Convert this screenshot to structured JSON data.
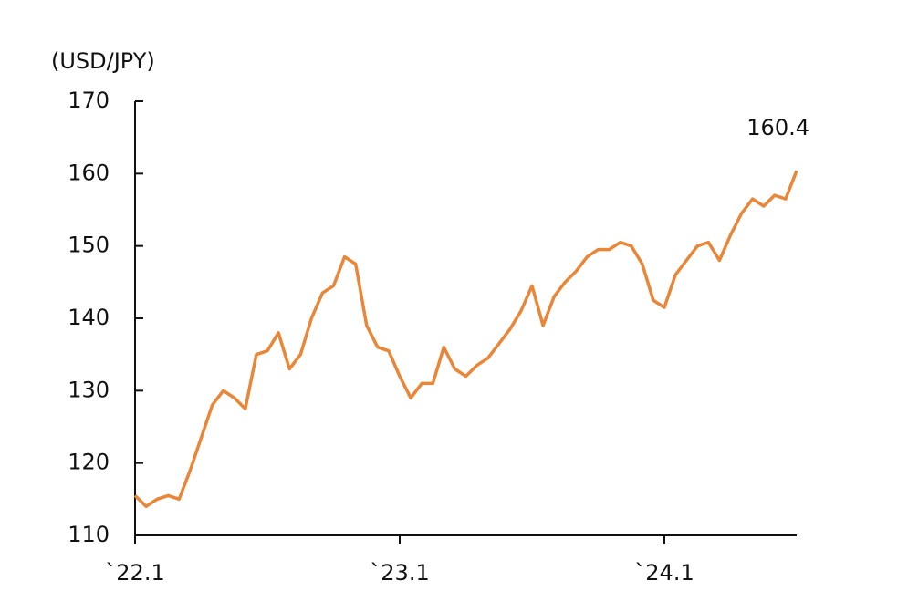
{
  "chart_data": {
    "type": "line",
    "y_label": "(USD/JPY)",
    "categories": [
      "`22.1",
      null,
      null,
      null,
      null,
      null,
      null,
      null,
      null,
      null,
      null,
      null,
      null,
      null,
      null,
      null,
      null,
      null,
      null,
      null,
      null,
      null,
      null,
      null,
      "`23.1",
      null,
      null,
      null,
      null,
      null,
      null,
      null,
      null,
      null,
      null,
      null,
      null,
      null,
      null,
      null,
      null,
      null,
      null,
      null,
      null,
      null,
      null,
      null,
      "`24.1",
      null,
      null,
      null,
      null,
      null,
      null,
      null,
      null,
      null,
      null,
      null,
      null
    ],
    "values": [
      115.5,
      114,
      115,
      115.5,
      115,
      119,
      123.5,
      128,
      130,
      129,
      127.5,
      135,
      135.5,
      138,
      133,
      135,
      140,
      143.5,
      144.5,
      148.5,
      147.5,
      139,
      136,
      135.5,
      132,
      129,
      131,
      131,
      136,
      133,
      132,
      133.5,
      134.5,
      136.5,
      138.5,
      141,
      144.5,
      139,
      143,
      145,
      146.5,
      148.5,
      149.5,
      149.5,
      150.5,
      150,
      147.5,
      142.5,
      141.5,
      146,
      148,
      150,
      150.5,
      148,
      151.5,
      154.5,
      156.5,
      155.5,
      157,
      156.5,
      160.4
    ],
    "color": "#ea8638",
    "ylim": [
      110,
      170
    ],
    "yticks": [
      110,
      120,
      130,
      140,
      150,
      160,
      170
    ],
    "grid": false
  }
}
